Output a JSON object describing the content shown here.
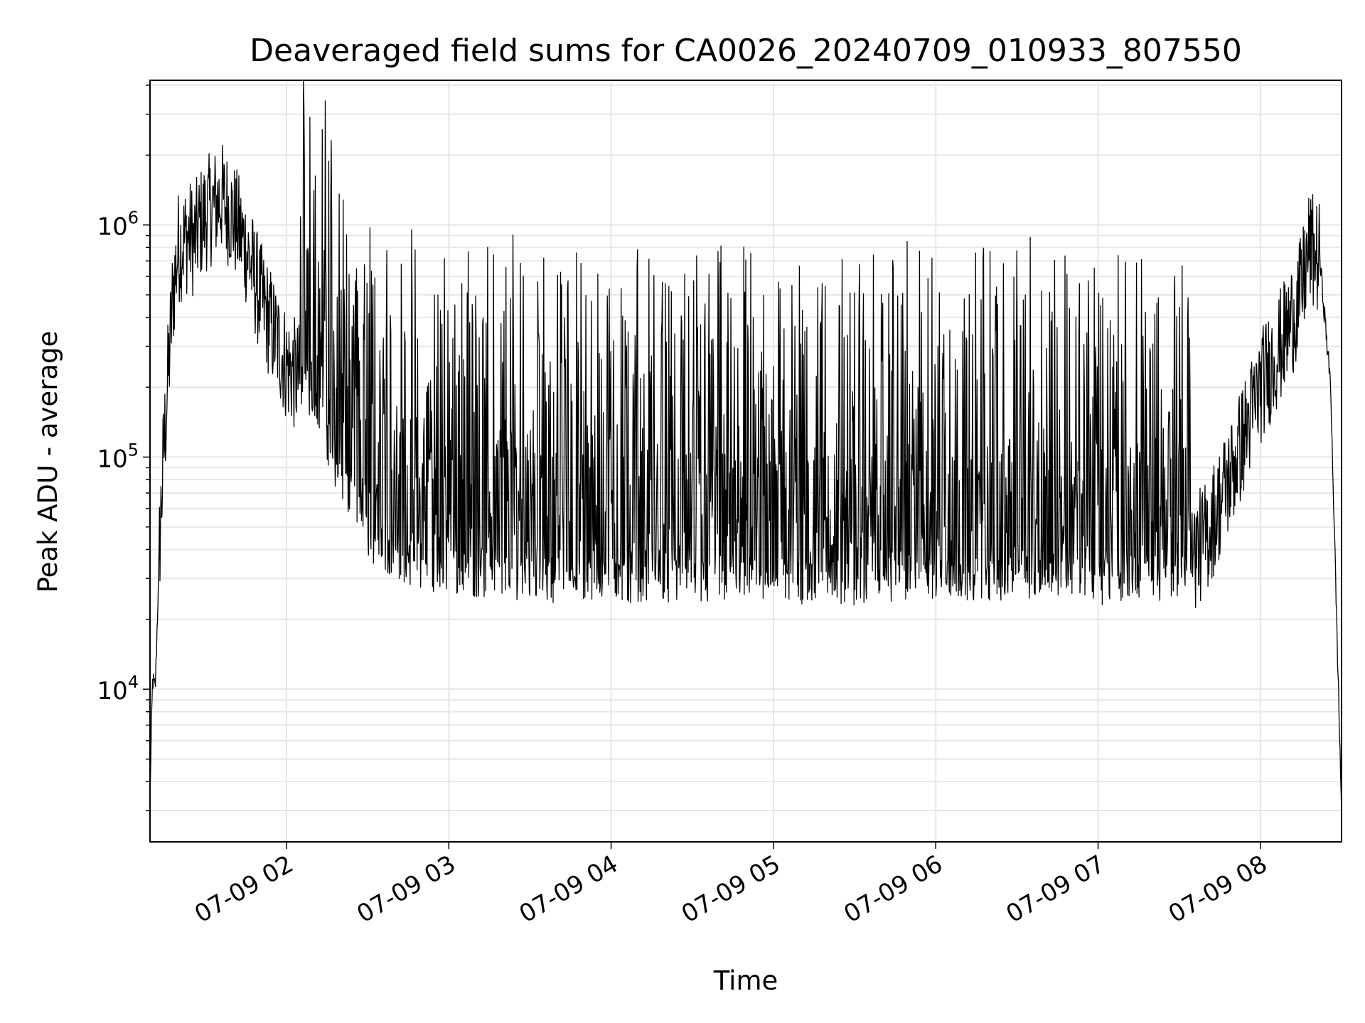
{
  "chart_data": {
    "type": "line",
    "title": "Deaveraged field sums for CA0026_20240709_010933_807550",
    "xlabel": "Time",
    "ylabel": "Peak ADU - average",
    "yscale": "log",
    "ylim": [
      2200,
      4200000
    ],
    "xlim": [
      "2024-07-09 01:09:33",
      "2024-07-09 08:30:00"
    ],
    "grid": true,
    "line_color": "#000000",
    "x_ticks": [
      {
        "value": "2024-07-09 02:00",
        "label": "07-09 02"
      },
      {
        "value": "2024-07-09 03:00",
        "label": "07-09 03"
      },
      {
        "value": "2024-07-09 04:00",
        "label": "07-09 04"
      },
      {
        "value": "2024-07-09 05:00",
        "label": "07-09 05"
      },
      {
        "value": "2024-07-09 06:00",
        "label": "07-09 06"
      },
      {
        "value": "2024-07-09 07:00",
        "label": "07-09 07"
      },
      {
        "value": "2024-07-09 08:00",
        "label": "07-09 08"
      }
    ],
    "y_ticks": [
      {
        "value": 10000,
        "label": "10",
        "exp": "4"
      },
      {
        "value": 100000,
        "label": "10",
        "exp": "5"
      },
      {
        "value": 1000000,
        "label": "10",
        "exp": "6"
      }
    ],
    "series": [
      {
        "values_description_free": true,
        "x": [
          "2024-07-09 01:09:33",
          "2024-07-09 01:10:30",
          "2024-07-09 01:11:30",
          "2024-07-09 01:13:00",
          "2024-07-09 01:14:30",
          "2024-07-09 01:16:00",
          "2024-07-09 01:18:00",
          "2024-07-09 01:20:00",
          "2024-07-09 01:22:00",
          "2024-07-09 01:24:00",
          "2024-07-09 01:26:00",
          "2024-07-09 01:28:00",
          "2024-07-09 01:30:00",
          "2024-07-09 01:33:00",
          "2024-07-09 01:36:00",
          "2024-07-09 01:40:00",
          "2024-07-09 01:45:00",
          "2024-07-09 01:50:00",
          "2024-07-09 01:55:00",
          "2024-07-09 02:00:00",
          "2024-07-09 02:10:00",
          "2024-07-09 02:15:00",
          "2024-07-09 02:20:00",
          "2024-07-09 02:30:00",
          "2024-07-09 02:45:00",
          "2024-07-09 03:00:00",
          "2024-07-09 03:30:00",
          "2024-07-09 04:00:00",
          "2024-07-09 04:30:00",
          "2024-07-09 05:00:00",
          "2024-07-09 05:30:00",
          "2024-07-09 06:00:00",
          "2024-07-09 06:30:00",
          "2024-07-09 07:00:00",
          "2024-07-09 07:20:00",
          "2024-07-09 07:30:00",
          "2024-07-09 07:40:00",
          "2024-07-09 07:50:00",
          "2024-07-09 08:00:00",
          "2024-07-09 08:10:00",
          "2024-07-09 08:15:00",
          "2024-07-09 08:18:00",
          "2024-07-09 08:22:00",
          "2024-07-09 08:26:00",
          "2024-07-09 08:30:00"
        ],
        "values": [
          3500,
          11000,
          10000,
          40000,
          100000,
          200000,
          500000,
          800000,
          850000,
          900000,
          850000,
          1000000,
          1100000,
          1200000,
          1300000,
          1100000,
          800000,
          500000,
          350000,
          250000,
          180000,
          120000,
          80000,
          45000,
          35000,
          32000,
          30000,
          29000,
          29000,
          29000,
          29000,
          30000,
          30000,
          29000,
          29000,
          32000,
          45000,
          90000,
          200000,
          350000,
          500000,
          800000,
          700000,
          200000,
          3000
        ]
      }
    ]
  }
}
